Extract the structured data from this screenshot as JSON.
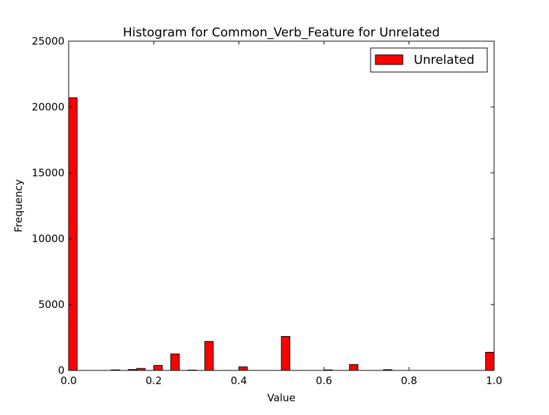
{
  "chart_data": {
    "type": "bar",
    "title": "Histogram for Common_Verb_Feature for Unrelated",
    "xlabel": "Value",
    "ylabel": "Frequency",
    "xlim": [
      0.0,
      1.0
    ],
    "ylim": [
      0,
      25000
    ],
    "xticks": [
      "0.0",
      "0.2",
      "0.4",
      "0.6",
      "0.8",
      "1.0"
    ],
    "yticks": [
      "0",
      "5000",
      "10000",
      "15000",
      "20000",
      "25000"
    ],
    "grid": false,
    "legend": {
      "location": "upper right"
    },
    "bar_color": "#ff0000",
    "edge_color": "#000000",
    "bin_width": 0.02,
    "series": [
      {
        "name": "Unrelated",
        "bins": [
          {
            "x0": 0.0,
            "value": 20700
          },
          {
            "x0": 0.1,
            "value": 40
          },
          {
            "x0": 0.14,
            "value": 70
          },
          {
            "x0": 0.16,
            "value": 150
          },
          {
            "x0": 0.2,
            "value": 380
          },
          {
            "x0": 0.24,
            "value": 1250
          },
          {
            "x0": 0.28,
            "value": 25
          },
          {
            "x0": 0.32,
            "value": 2200
          },
          {
            "x0": 0.4,
            "value": 270
          },
          {
            "x0": 0.5,
            "value": 2580
          },
          {
            "x0": 0.6,
            "value": 40
          },
          {
            "x0": 0.66,
            "value": 450
          },
          {
            "x0": 0.74,
            "value": 55
          },
          {
            "x0": 0.98,
            "value": 1380
          }
        ]
      }
    ]
  }
}
